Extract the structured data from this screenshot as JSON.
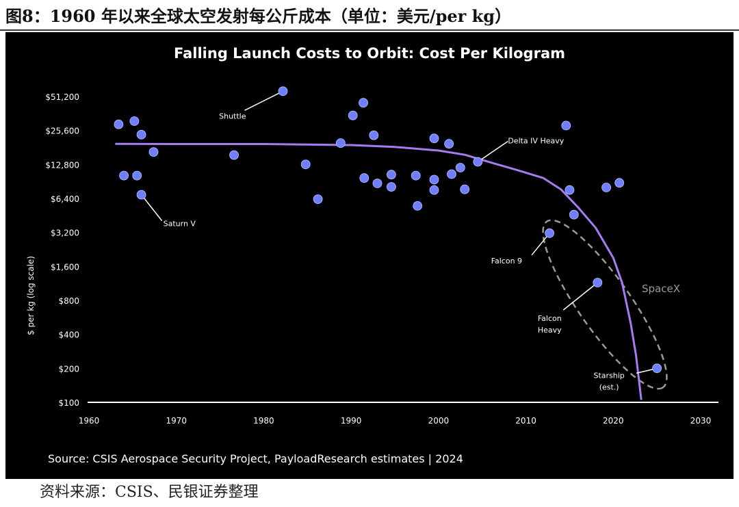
{
  "figure": {
    "title": "图8：1960 年以来全球太空发射每公斤成本（单位：美元/per kg）",
    "source": "资料来源：CSIS、民银证券整理"
  },
  "colors": {
    "background": "#000000",
    "point": "#6f7fff",
    "curve": "#a77cf2",
    "axis": "#ffffff",
    "ellipse": "#9a9a9a"
  },
  "chart_data": {
    "type": "scatter",
    "title": "Falling Launch Costs to Orbit: Cost Per Kilogram",
    "xlabel": "",
    "ylabel": "$ per kg (log scale)",
    "log_y": true,
    "xlim": [
      1960,
      2030
    ],
    "ylim": [
      100,
      51200
    ],
    "x_ticks": [
      "1960",
      "1970",
      "1980",
      "1990",
      "2000",
      "2010",
      "2020",
      "2030"
    ],
    "y_ticks": [
      "$51,200",
      "$25,600",
      "$12,800",
      "$6,400",
      "$3,200",
      "$1,600",
      "$800",
      "$400",
      "$200",
      "$100"
    ],
    "y_tick_values": [
      51200,
      25600,
      12800,
      6400,
      3200,
      1600,
      800,
      400,
      200,
      100
    ],
    "grid": false,
    "points": [
      {
        "x": 1963.4,
        "y": 29000
      },
      {
        "x": 1964.0,
        "y": 10200
      },
      {
        "x": 1965.2,
        "y": 31000
      },
      {
        "x": 1965.5,
        "y": 10200
      },
      {
        "x": 1966.0,
        "y": 23500
      },
      {
        "x": 1966.0,
        "y": 6900
      },
      {
        "x": 1967.4,
        "y": 16500
      },
      {
        "x": 1976.6,
        "y": 15500
      },
      {
        "x": 1982.2,
        "y": 57000
      },
      {
        "x": 1984.8,
        "y": 12800
      },
      {
        "x": 1986.2,
        "y": 6300
      },
      {
        "x": 1988.8,
        "y": 19800
      },
      {
        "x": 1990.2,
        "y": 34800
      },
      {
        "x": 1991.4,
        "y": 45000
      },
      {
        "x": 1991.5,
        "y": 9700
      },
      {
        "x": 1992.6,
        "y": 23200
      },
      {
        "x": 1993.0,
        "y": 8700
      },
      {
        "x": 1994.6,
        "y": 8100
      },
      {
        "x": 1994.6,
        "y": 10400
      },
      {
        "x": 1997.4,
        "y": 10200
      },
      {
        "x": 1997.6,
        "y": 5500
      },
      {
        "x": 1999.5,
        "y": 21800
      },
      {
        "x": 1999.5,
        "y": 9400
      },
      {
        "x": 1999.5,
        "y": 7600
      },
      {
        "x": 2001.2,
        "y": 19500
      },
      {
        "x": 2001.5,
        "y": 10500
      },
      {
        "x": 2002.5,
        "y": 12000
      },
      {
        "x": 2003.0,
        "y": 7700
      },
      {
        "x": 2004.5,
        "y": 13500
      },
      {
        "x": 2012.7,
        "y": 3150
      },
      {
        "x": 2014.6,
        "y": 28300
      },
      {
        "x": 2015.0,
        "y": 7600
      },
      {
        "x": 2015.5,
        "y": 4600
      },
      {
        "x": 2018.2,
        "y": 1150
      },
      {
        "x": 2019.2,
        "y": 8000
      },
      {
        "x": 2020.7,
        "y": 8800
      },
      {
        "x": 2025.0,
        "y": 200
      }
    ],
    "trend_curve": {
      "x": [
        1963,
        1970,
        1980,
        1990,
        1995,
        2000,
        2003,
        2006,
        2009,
        2012,
        2014,
        2016,
        2018,
        2020,
        2021,
        2022,
        2022.6,
        2023.2
      ],
      "y": [
        19500,
        19400,
        19400,
        19000,
        18300,
        17000,
        15600,
        13300,
        11400,
        9700,
        7700,
        5300,
        3500,
        1900,
        1150,
        500,
        260,
        105
      ]
    },
    "annotations": [
      {
        "text": "Shuttle",
        "x": 1982.2,
        "y": 57000
      },
      {
        "text": "Saturn V",
        "x": 1966.0,
        "y": 6900
      },
      {
        "text": "Delta IV Heavy",
        "x": 2004.5,
        "y": 13500
      },
      {
        "text": "Falcon 9",
        "x": 2012.7,
        "y": 3150
      },
      {
        "text": "Falcon Heavy",
        "x": 2018.2,
        "y": 1150
      },
      {
        "text": "Starship (est.)",
        "x": 2025.0,
        "y": 200
      }
    ],
    "group_label": "SpaceX",
    "source": "Source: CSIS Aerospace Security Project, PayloadResearch estimates | 2024"
  }
}
